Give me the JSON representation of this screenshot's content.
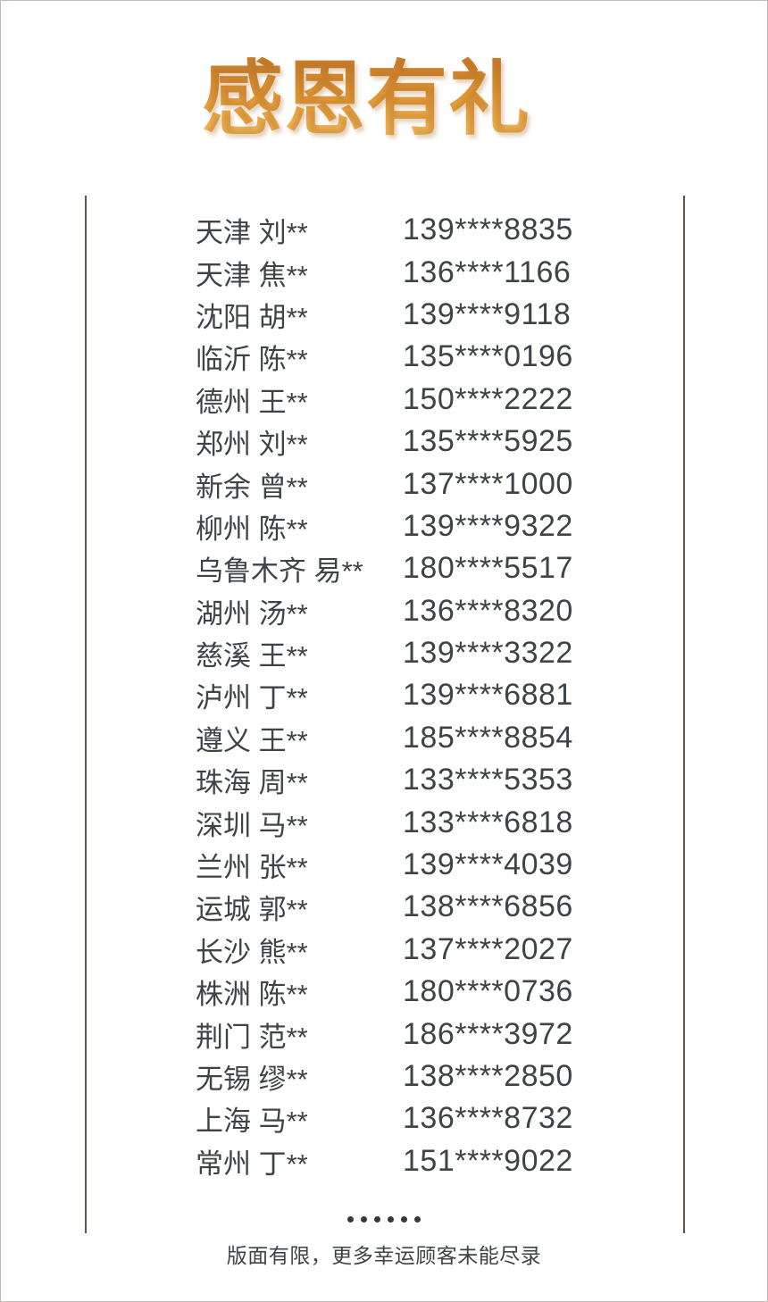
{
  "page": {
    "title": "感恩有礼",
    "footer_note": "版面有限，更多幸运顾客未能尽录",
    "ellipsis_dot_count": 6
  },
  "colors": {
    "background": "#ffffff",
    "text": "#3d4347",
    "frame_line": "#6b5242",
    "page_border": "#c6b8b6",
    "title_gradient_top": "#c97c2b",
    "title_gradient_mid": "#e59d3c",
    "title_gradient_bottom": "#f2bd62"
  },
  "winners": [
    {
      "name": "天津 刘**",
      "phone": "139****8835"
    },
    {
      "name": "天津 焦**",
      "phone": "136****1166"
    },
    {
      "name": "沈阳 胡**",
      "phone": "139****9118"
    },
    {
      "name": "临沂 陈**",
      "phone": "135****0196"
    },
    {
      "name": "德州 王**",
      "phone": "150****2222"
    },
    {
      "name": "郑州 刘**",
      "phone": "135****5925"
    },
    {
      "name": "新余 曾**",
      "phone": "137****1000"
    },
    {
      "name": "柳州 陈**",
      "phone": "139****9322"
    },
    {
      "name": "乌鲁木齐 易**",
      "phone": "180****5517"
    },
    {
      "name": "湖州 汤**",
      "phone": "136****8320"
    },
    {
      "name": "慈溪 王**",
      "phone": "139****3322"
    },
    {
      "name": "泸州 丁**",
      "phone": "139****6881"
    },
    {
      "name": "遵义 王**",
      "phone": "185****8854"
    },
    {
      "name": "珠海 周**",
      "phone": "133****5353"
    },
    {
      "name": "深圳 马**",
      "phone": "133****6818"
    },
    {
      "name": "兰州 张**",
      "phone": "139****4039"
    },
    {
      "name": "运城 郭**",
      "phone": "138****6856"
    },
    {
      "name": "长沙 熊**",
      "phone": "137****2027"
    },
    {
      "name": "株洲 陈**",
      "phone": "180****0736"
    },
    {
      "name": "荆门 范**",
      "phone": "186****3972"
    },
    {
      "name": "无锡 缪**",
      "phone": "138****2850"
    },
    {
      "name": "上海 马**",
      "phone": "136****8732"
    },
    {
      "name": "常州 丁**",
      "phone": "151****9022"
    }
  ]
}
